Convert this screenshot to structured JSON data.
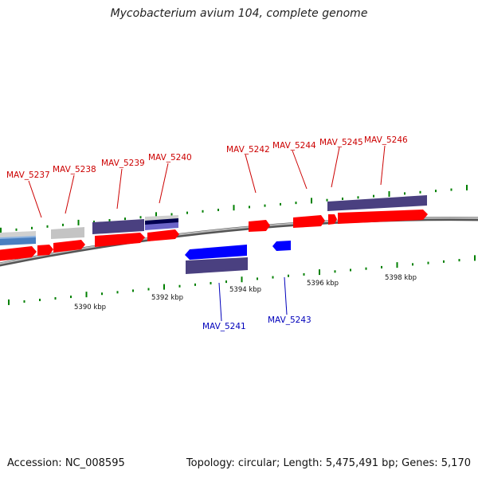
{
  "title": "Mycobacterium avium 104, complete genome",
  "footer": {
    "accession": "Accession: NC_008595",
    "summary": "Topology: circular; Length: 5,475,491 bp; Genes: 5,170"
  },
  "colors": {
    "forward_label": "#cc0000",
    "reverse_label": "#0000bb",
    "forward_gene": "#ff0000",
    "reverse_gene": "#0000ff",
    "feature_track": "#4a4080",
    "pseudo_gray": "#c0c0c0",
    "tick_green": "#008000",
    "backbone": "#808080"
  },
  "kbp_labels": [
    "5390 kbp",
    "5392 kbp",
    "5394 kbp",
    "5396 kbp",
    "5398 kbp"
  ],
  "forward_labels": [
    "MAV_5237",
    "MAV_5238",
    "MAV_5239",
    "MAV_5240",
    "MAV_5242",
    "MAV_5244",
    "MAV_5245",
    "MAV_5246"
  ],
  "reverse_labels": [
    "MAV_5241",
    "MAV_5243"
  ]
}
